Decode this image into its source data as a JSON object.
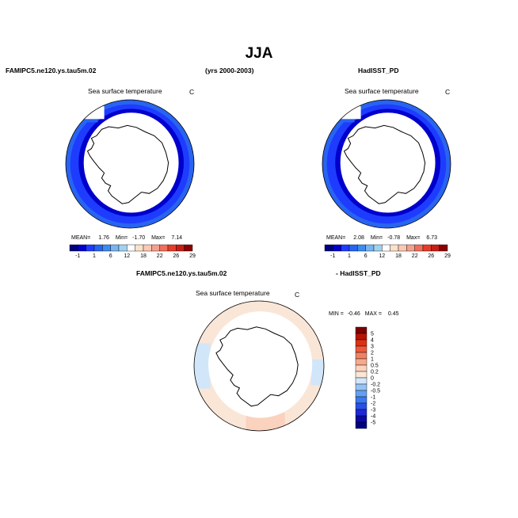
{
  "title": "JJA",
  "header": {
    "left": "FAMIPC5.ne120.ys.tau5m.02",
    "center": "(yrs 2000-2003)",
    "right": "HadISST_PD"
  },
  "colors": {
    "scale_abs": [
      "#000080",
      "#0000cd",
      "#1e3cff",
      "#2864f0",
      "#3c8cf0",
      "#78b4f0",
      "#a0d2f0",
      "#ffffff",
      "#fae1c8",
      "#fac8b4",
      "#f5a08c",
      "#f06e5a",
      "#e63c28",
      "#c81e14",
      "#8b0000"
    ],
    "scale_diff": [
      "#000080",
      "#0a0aa0",
      "#1e28d2",
      "#2850e6",
      "#3c78f0",
      "#64a0f0",
      "#96c3f5",
      "#d2e6fa",
      "#fae6d7",
      "#fad2be",
      "#f5aa8c",
      "#f08264",
      "#eb5a3c",
      "#dc3214",
      "#b41400",
      "#7d0000"
    ],
    "land": "#ffffff",
    "coast": "#000000"
  },
  "panels": [
    {
      "subtitle": "Sea surface temperature",
      "unit": "C",
      "stats": {
        "mean_label": "MEAN=",
        "mean": "1.76",
        "min_label": "Min=",
        "min": "-1.70",
        "max_label": "Max=",
        "max": "7.14"
      },
      "colorbar_labels": [
        "-1",
        "1",
        "6",
        "12",
        "18",
        "22",
        "26",
        "29"
      ]
    },
    {
      "subtitle": "Sea surface temperature",
      "unit": "C",
      "stats": {
        "mean_label": "MEAN=",
        "mean": "2.08",
        "min_label": "Min=",
        "min": "-0.78",
        "max_label": "Max=",
        "max": "6.73"
      },
      "colorbar_labels": [
        "-1",
        "1",
        "6",
        "12",
        "18",
        "22",
        "26",
        "29"
      ]
    }
  ],
  "diff": {
    "title_left": "FAMIPC5.ne120.ys.tau5m.02",
    "title_right": "- HadISST_PD",
    "subtitle": "Sea surface temperature",
    "unit": "C",
    "stats": {
      "min_label": "MIN =",
      "min": "-0.46",
      "max_label": "MAX =",
      "max": "0.45"
    },
    "colorbar_labels": [
      "5",
      "4",
      "3",
      "2",
      "1",
      "0.5",
      "0.2",
      "0",
      "-0.2",
      "-0.5",
      "-1",
      "-2",
      "-3",
      "-4",
      "-5"
    ]
  },
  "chart_data": [
    {
      "type": "heatmap",
      "title": "Sea surface temperature",
      "projection": "south polar stereographic",
      "unit": "C",
      "levels": [
        -1,
        1,
        6,
        12,
        18,
        22,
        26,
        29
      ],
      "mean": 1.76,
      "min": -1.7,
      "max": 7.14
    },
    {
      "type": "heatmap",
      "title": "Sea surface temperature",
      "projection": "south polar stereographic",
      "unit": "C",
      "levels": [
        -1,
        1,
        6,
        12,
        18,
        22,
        26,
        29
      ],
      "mean": 2.08,
      "min": -0.78,
      "max": 6.73
    },
    {
      "type": "heatmap",
      "title": "Sea surface temperature",
      "projection": "south polar stereographic",
      "unit": "C",
      "levels": [
        -5,
        -4,
        -3,
        -2,
        -1,
        -0.5,
        -0.2,
        0,
        0.2,
        0.5,
        1,
        2,
        3,
        4,
        5
      ],
      "min": -0.46,
      "max": 0.45
    }
  ]
}
